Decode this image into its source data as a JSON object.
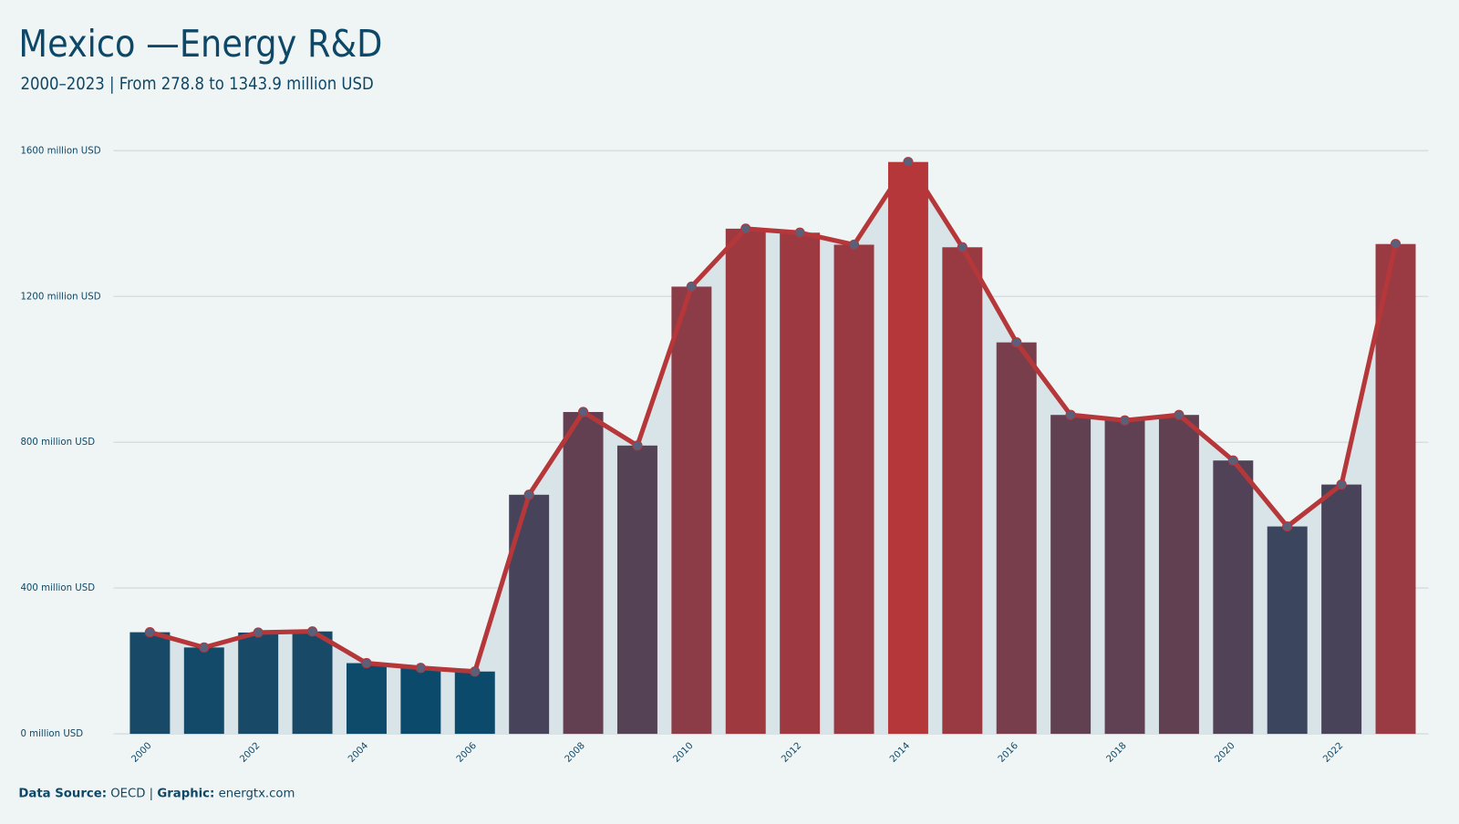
{
  "chart_data": {
    "type": "bar",
    "title": "Mexico —Energy R&D",
    "subtitle": "2000–2023 | From 278.8 to 1343.9 million USD",
    "x": [
      2000,
      2001,
      2002,
      2003,
      2004,
      2005,
      2006,
      2007,
      2008,
      2009,
      2010,
      2011,
      2012,
      2013,
      2014,
      2015,
      2016,
      2017,
      2018,
      2019,
      2020,
      2021,
      2022,
      2023
    ],
    "values": [
      278.8,
      237,
      278,
      281,
      194,
      181,
      171,
      656,
      883,
      791,
      1227,
      1386,
      1375,
      1342,
      1569,
      1335,
      1074,
      875,
      860,
      875,
      750,
      569,
      684,
      1343.9
    ],
    "xlim": [
      1999.5,
      2023.5
    ],
    "xticks": [
      2000,
      2002,
      2004,
      2006,
      2008,
      2010,
      2012,
      2014,
      2016,
      2018,
      2020,
      2022
    ],
    "ylim": [
      0,
      1600
    ],
    "yticks": [
      {
        "value": 0,
        "label": "0 million USD"
      },
      {
        "value": 400,
        "label": "400 million USD"
      },
      {
        "value": 800,
        "label": "800 million USD"
      },
      {
        "value": 1200,
        "label": "1200 million USD"
      },
      {
        "value": 1600,
        "label": "1600 million USD"
      }
    ],
    "grid": true,
    "bar_colors": [
      "#0b4a6b",
      "#b5373a"
    ],
    "line": true,
    "line_color": "#b5373a",
    "area_color": "#d8e4e8",
    "marker_color": "#5a5f7a",
    "footer": {
      "source_label": "Data Source:",
      "source": "OECD |",
      "graphic_label": "Graphic:",
      "graphic": "energtx.com"
    }
  }
}
